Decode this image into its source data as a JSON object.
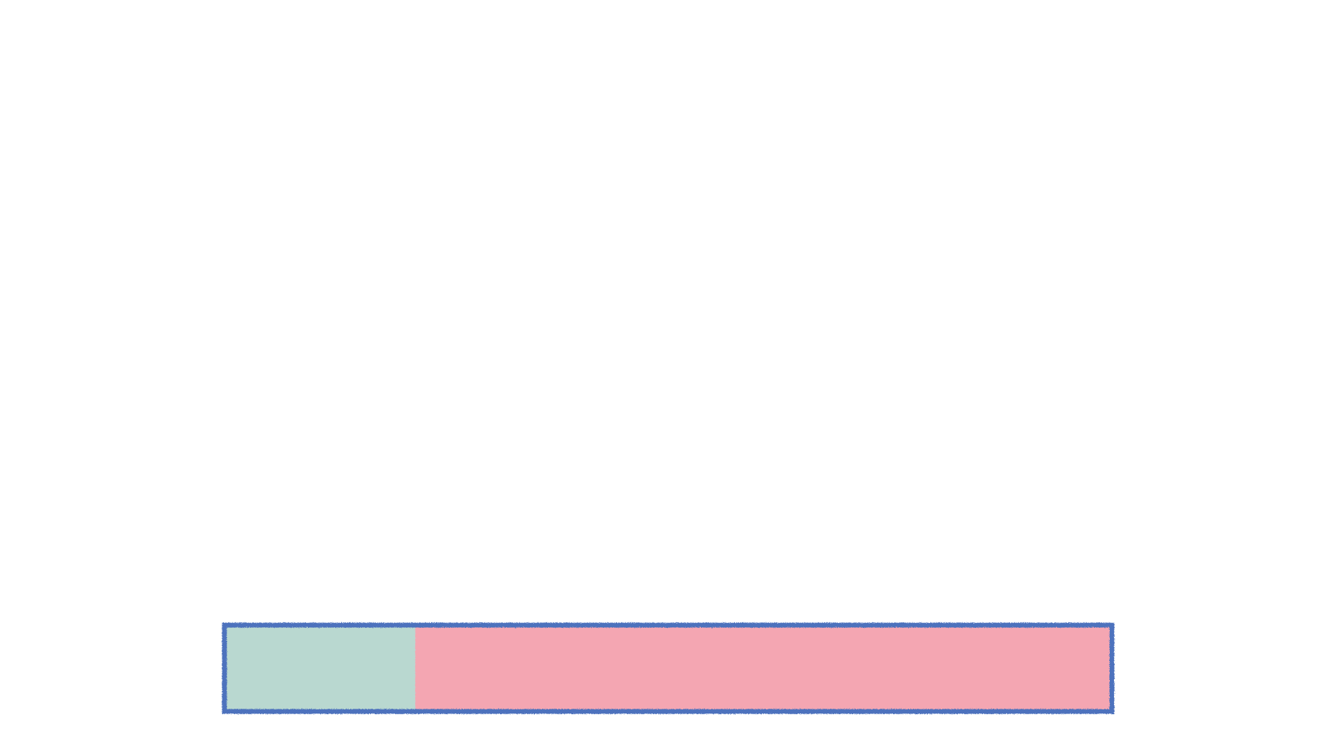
{
  "progress": {
    "fraction": 0.215,
    "tick_count": 11,
    "colors": {
      "filled": "#b9d8d0",
      "remaining": "#f4a6b2",
      "outline": "#4d72bd",
      "background": "#ffffff"
    }
  }
}
